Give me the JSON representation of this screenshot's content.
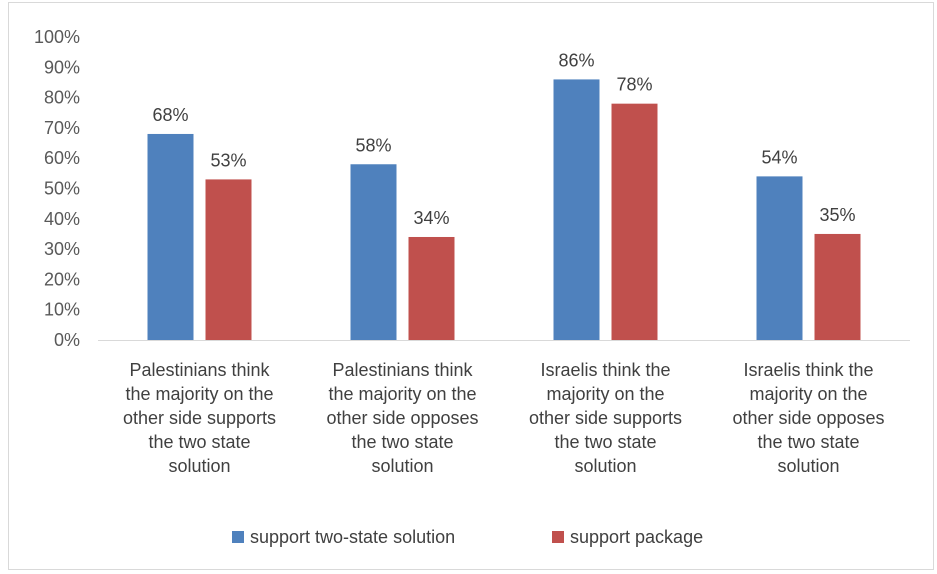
{
  "chart_data": {
    "type": "bar",
    "categories": [
      [
        "Palestinians think",
        "the majority on the",
        "other side supports",
        "the two state",
        "solution"
      ],
      [
        "Palestinians think",
        "the majority on the",
        "other side opposes",
        "the two state",
        "solution"
      ],
      [
        "Israelis think the",
        "majority on the",
        "other side  supports",
        "the two state",
        "solution"
      ],
      [
        "Israelis think the",
        "majority on the",
        "other side  opposes",
        "the two state",
        "solution"
      ]
    ],
    "series": [
      {
        "name": "support  two-state solution",
        "color": "#4f81bd",
        "values": [
          68,
          58,
          86,
          54
        ],
        "labels": [
          "68%",
          "58%",
          "86%",
          "54%"
        ]
      },
      {
        "name": "support package",
        "color": "#c0504d",
        "values": [
          53,
          34,
          78,
          35
        ],
        "labels": [
          "53%",
          "34%",
          "78%",
          "35%"
        ]
      }
    ],
    "ylim": [
      0,
      100
    ],
    "yticks": [
      "0%",
      "10%",
      "20%",
      "30%",
      "40%",
      "50%",
      "60%",
      "70%",
      "80%",
      "90%",
      "100%"
    ],
    "grid": false,
    "legend_position": "bottom"
  }
}
